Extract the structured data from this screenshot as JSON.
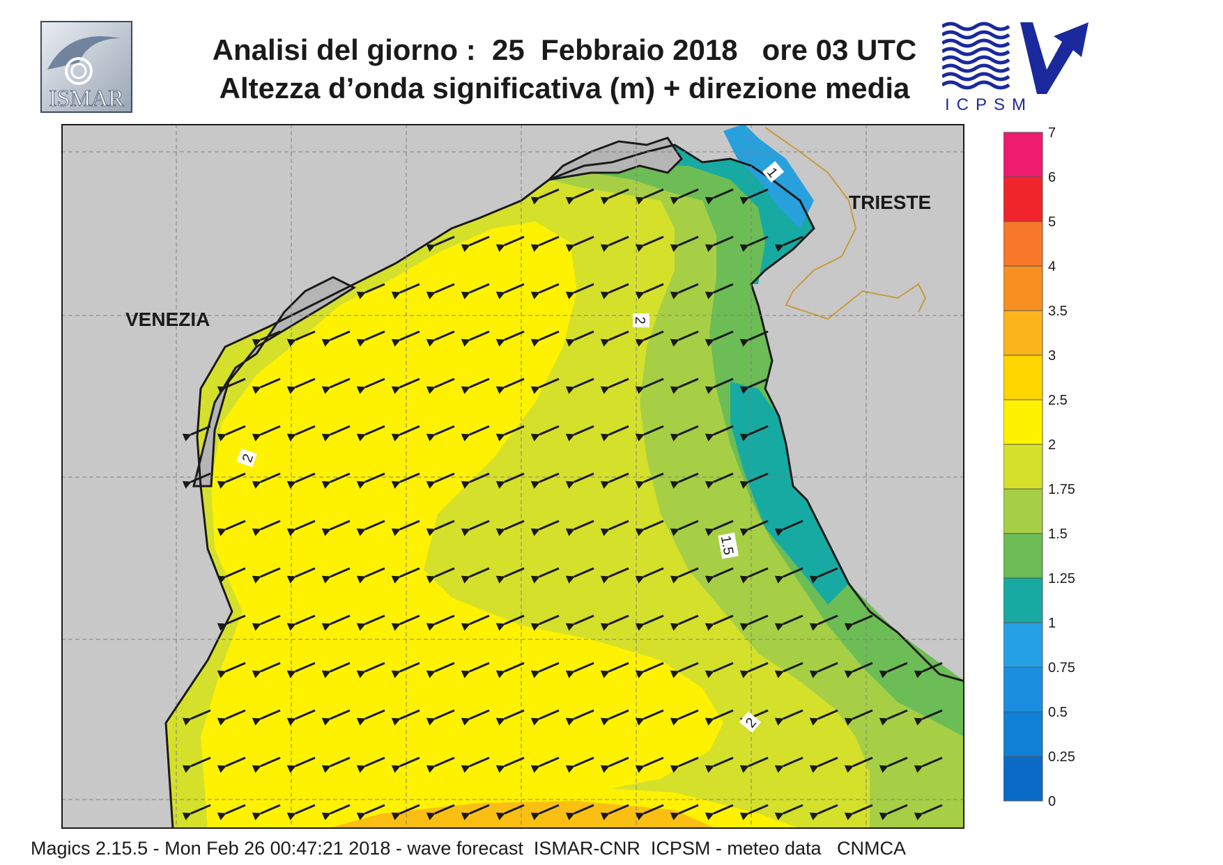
{
  "header": {
    "title_line1": "Analisi del giorno :  25  Febbraio 2018   ore 03 UTC",
    "title_line2": "Altezza d’onda significativa (m) + direzione media"
  },
  "logos": {
    "left": {
      "text": "ISMAR",
      "icon": "ismar-logo-icon"
    },
    "right": {
      "text": "ICPSM",
      "icon": "icpsm-logo-icon"
    }
  },
  "map": {
    "places": [
      {
        "name": "VENEZIA",
        "icon": "city-label"
      },
      {
        "name": "TRIESTE",
        "icon": "city-label"
      }
    ],
    "contour_labels": [
      "1",
      "2",
      "2",
      "1.5",
      "2"
    ],
    "arrow_direction": "towards south-west",
    "colors": {
      "land": "#c8c8c8",
      "yellow": "#fff200",
      "yellow_green": "#d5e02b",
      "light_green": "#a6cf45",
      "green": "#6cbd55",
      "teal": "#17aaa2",
      "blue": "#28a0dc",
      "orange": "#fbbf14",
      "border": "#c89a3a"
    }
  },
  "legend": {
    "levels": [
      "0",
      "0.25",
      "0.5",
      "0.75",
      "1",
      "1.25",
      "1.5",
      "1.75",
      "2",
      "2.5",
      "3",
      "3.5",
      "4",
      "5",
      "6",
      "7"
    ],
    "colors": [
      "#0a6ac7",
      "#0f80d6",
      "#1a8fe0",
      "#25a0e6",
      "#17aaa2",
      "#6cbd55",
      "#a6cf45",
      "#d5e02b",
      "#fff200",
      "#ffd600",
      "#fbb41a",
      "#f98f1f",
      "#f7782a",
      "#f0252c",
      "#ee1b6e"
    ]
  },
  "footer": {
    "text": "Magics 2.15.5 - Mon Feb 26 00:47:21 2018 - wave forecast  ISMAR-CNR  ICPSM - meteo data   CNMCA"
  }
}
